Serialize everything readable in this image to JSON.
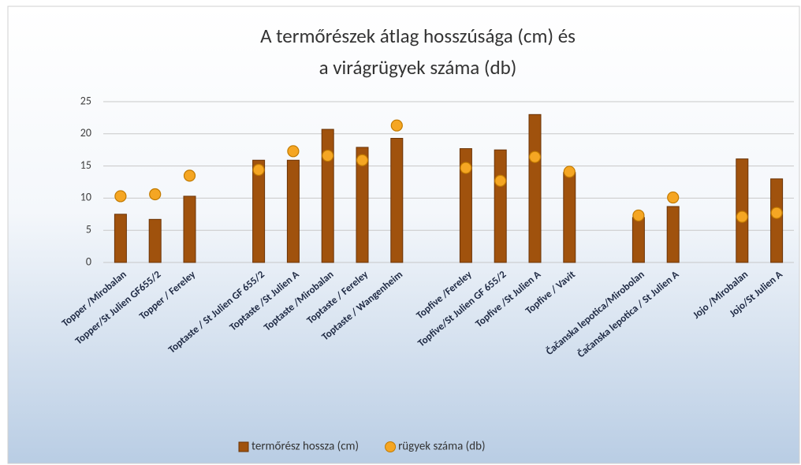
{
  "chart_data": {
    "type": "bar",
    "title": [
      "A termőrészek átlag hosszúsága (cm) és",
      "a virágrügyek száma (db)"
    ],
    "categories": [
      "Topper /Mirobalan",
      "Topper/St Julien GF655/2",
      "Topper / Fereley",
      null,
      "Toptaste / St Julien GF 655/2",
      "Toptaste /St Julien A",
      "Toptaste /Mirobalan",
      "Toptaste / Fereley",
      "Toptaste / Wangenheim",
      null,
      "Topfive /Fereley",
      "Topfive/St Julien GF 655/2",
      "Topfive /St Julien A",
      "Topfive / Vavit",
      null,
      "Čačanska lepotica/Mirobolan",
      "Čačanska lepotica /  St Julien A",
      null,
      "Jojo /Mirobalan",
      "Jojo/St Julien A"
    ],
    "series": [
      {
        "name": "termőrész hossza (cm)",
        "type": "bar",
        "color": "#a0520d",
        "values": [
          7.5,
          6.7,
          10.3,
          null,
          15.9,
          15.9,
          20.7,
          17.9,
          19.3,
          null,
          17.7,
          17.5,
          23,
          14,
          null,
          7,
          8.7,
          null,
          16.1,
          13
        ]
      },
      {
        "name": "rügyek száma (db)",
        "type": "scatter",
        "color": "#f5a623",
        "values": [
          10.3,
          10.6,
          13.5,
          null,
          14.4,
          17.3,
          16.6,
          15.9,
          21.3,
          null,
          14.7,
          12.7,
          16.4,
          14.1,
          null,
          7.3,
          10.1,
          null,
          7.1,
          7.7
        ]
      }
    ],
    "ylim": [
      0,
      25
    ],
    "yticks": [
      0,
      5,
      10,
      15,
      20,
      25
    ],
    "grid": true,
    "legend": "bottom"
  }
}
